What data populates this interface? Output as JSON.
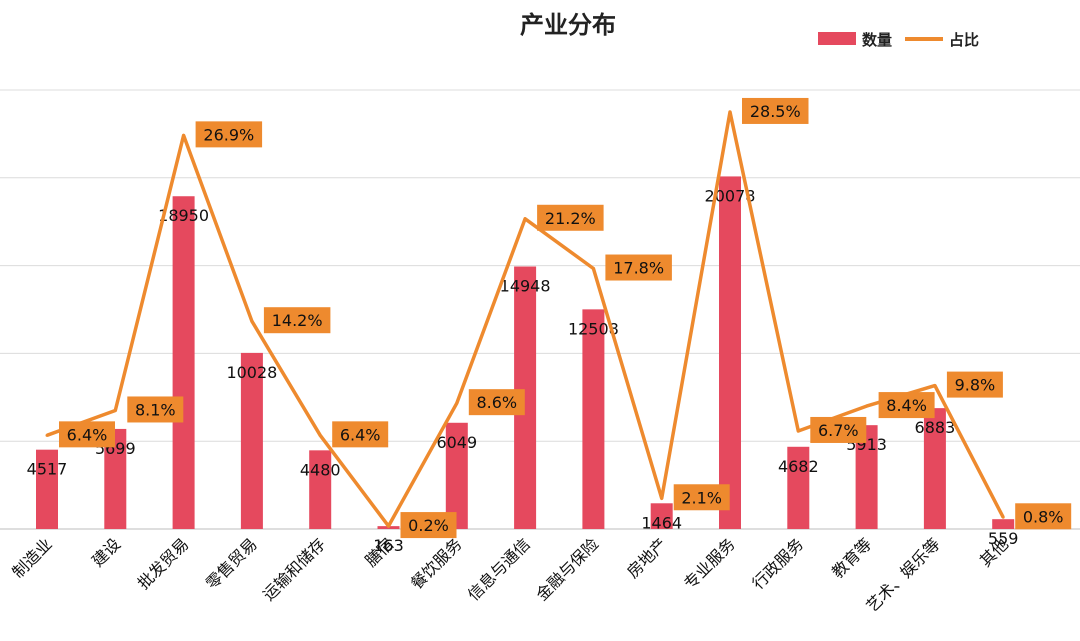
{
  "chart_data": {
    "type": "bar",
    "title": "产业分布",
    "categories": [
      "制造业",
      "建设",
      "批发贸易",
      "零售贸易",
      "运输和储存",
      "膳宿",
      "餐饮服务",
      "信息与通信",
      "金融与保险",
      "房地产",
      "专业服务",
      "行政服务",
      "教育等",
      "艺术、娱乐等",
      "其他"
    ],
    "series": [
      {
        "name": "数量",
        "type": "bar",
        "color": "#E5495E",
        "values": [
          4517,
          5699,
          18950,
          10028,
          4480,
          163,
          6049,
          14948,
          12508,
          1464,
          20078,
          4682,
          5913,
          6883,
          559
        ],
        "labels": [
          "4517",
          "5699",
          "18950",
          "10028",
          "4480",
          "163",
          "6049",
          "14948",
          "12508",
          "1464",
          "20078",
          "4682",
          "5913",
          "6883",
          "559"
        ]
      },
      {
        "name": "占比",
        "type": "line",
        "color": "#EE8A2E",
        "values": [
          6.4,
          8.1,
          26.9,
          14.2,
          6.4,
          0.2,
          8.6,
          21.2,
          17.8,
          2.1,
          28.5,
          6.7,
          8.4,
          9.8,
          0.8
        ],
        "labels": [
          "6.4%",
          "8.1%",
          "26.9%",
          "14.2%",
          "6.4%",
          "0.2%",
          "8.6%",
          "21.2%",
          "17.8%",
          "2.1%",
          "28.5%",
          "6.7%",
          "8.4%",
          "9.8%",
          "0.8%"
        ]
      }
    ],
    "ylim": [
      0,
      25000
    ],
    "y2lim": [
      0,
      30
    ],
    "grid": true,
    "legend_position": "top-right",
    "label_color": "#EE8A2E"
  }
}
